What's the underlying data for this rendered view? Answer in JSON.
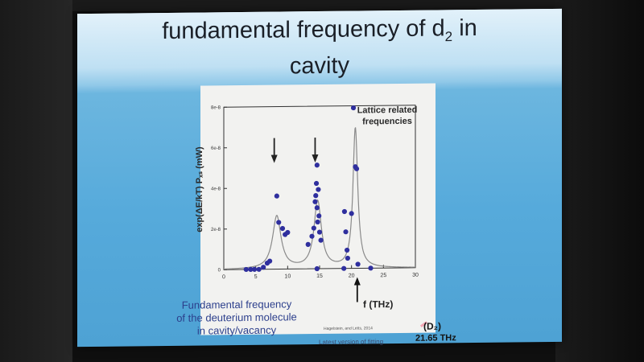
{
  "slide": {
    "title_line1": "fundamental frequency of d",
    "title_sub": "2",
    "title_suffix": " in",
    "title_line2": "cavity",
    "caption_line1": "Fundamental frequency",
    "caption_line2": "of the deuterium molecule",
    "caption_line3": "in cavity/vacancy",
    "citation": "Hagelstein, and Letts, 2014",
    "footnote": "Latest version of fitting",
    "d2_label": "(D₂)",
    "frequency_label": "21.65 THz"
  },
  "chart_data": {
    "type": "scatter",
    "xlabel": "f (THz)",
    "ylabel": "exp(ΔE/kT) Pₓₛ (mW)",
    "xlim": [
      0,
      30
    ],
    "ylim": [
      0,
      8e-08
    ],
    "xticks": [
      0,
      5,
      10,
      15,
      20,
      25,
      30
    ],
    "yticks": [
      0,
      2e-08,
      4e-08,
      6e-08,
      8e-08
    ],
    "ytick_labels": [
      "0",
      "2e-8",
      "4e-8",
      "6e-8",
      "8e-8"
    ],
    "annotation": [
      "Lattice related",
      "frequencies"
    ],
    "annotation_arrows_x": [
      7.9,
      14.3,
      20.9
    ],
    "lattice_peaks_x": [
      8.5,
      14.5
    ],
    "d2_peak_x": 21.65,
    "series": [
      {
        "type": "scatter",
        "points": [
          [
            3.5,
            0
          ],
          [
            4.2,
            0
          ],
          [
            4.8,
            0
          ],
          [
            5.5,
            0
          ],
          [
            6.2,
            1e-09
          ],
          [
            6.8,
            3e-09
          ],
          [
            7.2,
            4e-09
          ],
          [
            8.3,
            3.6e-08
          ],
          [
            8.6,
            2.3e-08
          ],
          [
            9.2,
            2e-08
          ],
          [
            9.6,
            1.7e-08
          ],
          [
            10.0,
            1.8e-08
          ],
          [
            13.2,
            1.2e-08
          ],
          [
            13.8,
            1.6e-08
          ],
          [
            14.1,
            2e-08
          ],
          [
            14.3,
            3.3e-08
          ],
          [
            14.4,
            3.6e-08
          ],
          [
            14.5,
            4.2e-08
          ],
          [
            14.6,
            3e-08
          ],
          [
            14.7,
            2.3e-08
          ],
          [
            14.6,
            5.1e-08
          ],
          [
            14.8,
            3.9e-08
          ],
          [
            14.9,
            2.6e-08
          ],
          [
            15.0,
            1.8e-08
          ],
          [
            15.2,
            1.4e-08
          ],
          [
            14.6,
            0
          ],
          [
            18.9,
            2.8e-08
          ],
          [
            19.1,
            1.8e-08
          ],
          [
            19.3,
            9e-09
          ],
          [
            19.4,
            5e-09
          ],
          [
            18.8,
            0
          ],
          [
            20.0,
            2.7e-08
          ],
          [
            20.3,
            7.9e-08
          ],
          [
            20.6,
            5e-08
          ],
          [
            20.8,
            4.9e-08
          ],
          [
            21.0,
            2e-09
          ],
          [
            23.0,
            0
          ]
        ]
      },
      {
        "type": "line",
        "name": "fit",
        "peaks": [
          {
            "center": 8.3,
            "height": 2.6e-08,
            "width": 0.8
          },
          {
            "center": 14.7,
            "height": 3.3e-08,
            "width": 0.7
          },
          {
            "center": 20.6,
            "height": 6.9e-08,
            "width": 0.45
          }
        ]
      }
    ],
    "grid": false
  },
  "colors": {
    "point": "#2f2f9e",
    "fit_line": "#8a8a8a",
    "axis": "#333333"
  }
}
